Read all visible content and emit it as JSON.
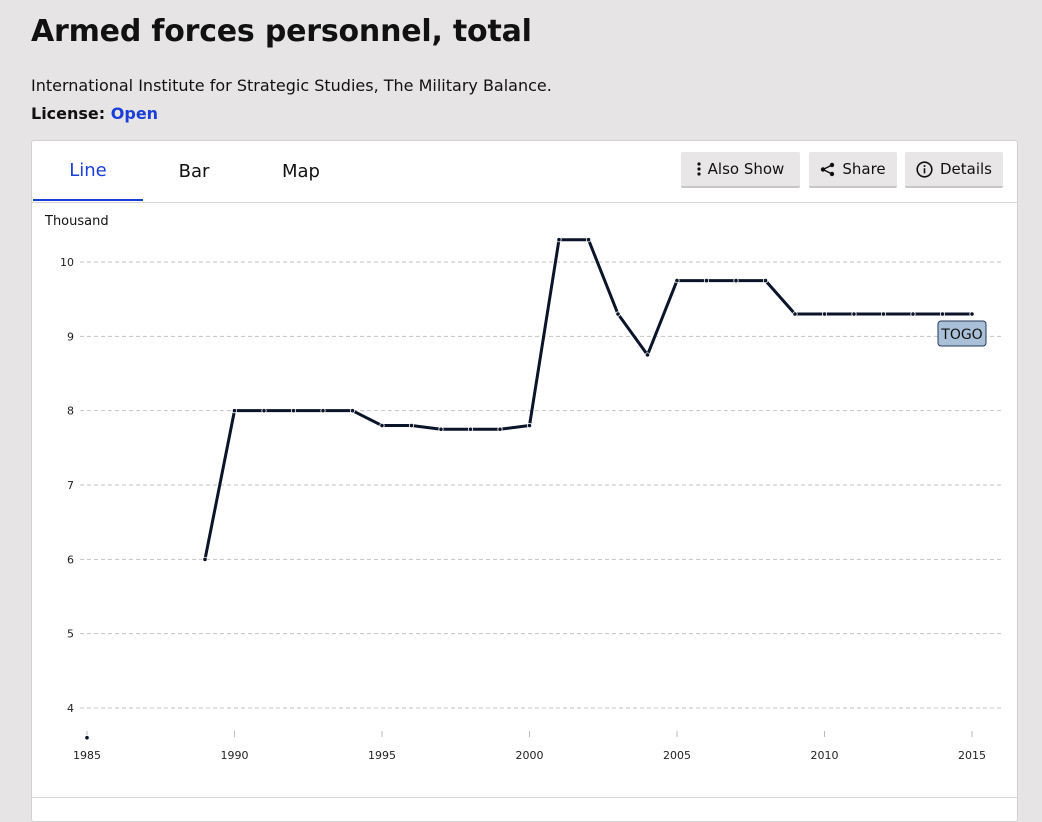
{
  "header": {
    "title": "Armed forces personnel, total",
    "source": "International Institute for Strategic Studies, The Military Balance.",
    "license_label": "License:",
    "license_value": "Open"
  },
  "tabs": [
    {
      "label": "Line",
      "active": true
    },
    {
      "label": "Bar",
      "active": false
    },
    {
      "label": "Map",
      "active": false
    }
  ],
  "actions": {
    "also_show": "Also Show",
    "share": "Share",
    "details": "Details"
  },
  "colors": {
    "accent": "#1a3fd6",
    "line": "#0b1428",
    "series_label_bg": "#a9c0d8"
  },
  "chart_data": {
    "type": "line",
    "ylabel": "Thousand",
    "xlim": [
      1985,
      2015
    ],
    "ylim": [
      3.6,
      10.4
    ],
    "xticks": [
      1985,
      1990,
      1995,
      2000,
      2005,
      2010,
      2015
    ],
    "yticks": [
      4,
      5,
      6,
      7,
      8,
      9,
      10
    ],
    "grid": true,
    "series": [
      {
        "name": "TOGO",
        "x": [
          1985,
          1989,
          1990,
          1991,
          1992,
          1993,
          1994,
          1995,
          1996,
          1997,
          1998,
          1999,
          2000,
          2001,
          2002,
          2003,
          2004,
          2005,
          2006,
          2007,
          2008,
          2009,
          2010,
          2011,
          2012,
          2013,
          2014,
          2015
        ],
        "y": [
          3.6,
          6.0,
          8.0,
          8.0,
          8.0,
          8.0,
          8.0,
          7.8,
          7.8,
          7.75,
          7.75,
          7.75,
          7.8,
          10.3,
          10.3,
          9.3,
          8.75,
          9.75,
          9.75,
          9.75,
          9.75,
          9.3,
          9.3,
          9.3,
          9.3,
          9.3,
          9.3,
          9.3
        ]
      }
    ]
  }
}
